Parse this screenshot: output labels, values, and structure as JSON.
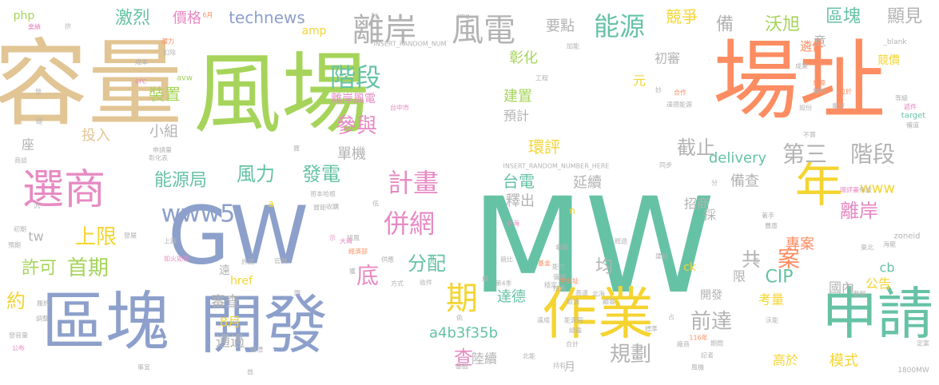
{
  "palette": {
    "tan": "#e2c594",
    "green": "#a6d45a",
    "orange": "#fc8d62",
    "blue": "#8da0cb",
    "teal": "#66c2a5",
    "yellow": "#f5d431",
    "pink": "#e78ac3",
    "gray": "#b3b3b3"
  },
  "words": [
    {
      "text": "容量",
      "color": "tan"
    },
    {
      "text": "風場",
      "color": "green"
    },
    {
      "text": "場址",
      "color": "orange"
    },
    {
      "text": "MW",
      "color": "teal"
    },
    {
      "text": "GW",
      "color": "blue"
    },
    {
      "text": "區塊",
      "color": "blue"
    },
    {
      "text": "開發",
      "color": "blue"
    },
    {
      "text": "作業",
      "color": "yellow"
    },
    {
      "text": "申請",
      "color": "teal"
    },
    {
      "text": "選商",
      "color": "pink"
    },
    {
      "text": "年",
      "color": "yellow"
    },
    {
      "text": "離岸",
      "color": "gray"
    },
    {
      "text": "風電",
      "color": "gray"
    },
    {
      "text": "能源",
      "color": "teal"
    },
    {
      "text": "階段",
      "color": "teal"
    },
    {
      "text": "計畫",
      "color": "pink"
    },
    {
      "text": "第三",
      "color": "gray"
    },
    {
      "text": "階段",
      "color": "gray"
    },
    {
      "text": "併網",
      "color": "pink"
    },
    {
      "text": "www5",
      "color": "blue"
    },
    {
      "text": "風力",
      "color": "teal"
    },
    {
      "text": "發電",
      "color": "teal"
    },
    {
      "text": "上限",
      "color": "yellow"
    },
    {
      "text": "首期",
      "color": "green"
    },
    {
      "text": "分配",
      "color": "teal"
    },
    {
      "text": "期",
      "color": "yellow"
    },
    {
      "text": "查",
      "color": "pink"
    },
    {
      "text": "規劃",
      "color": "gray"
    },
    {
      "text": "前達",
      "color": "gray"
    },
    {
      "text": "參與",
      "color": "pink"
    },
    {
      "text": "激烈",
      "color": "teal"
    },
    {
      "text": "technews",
      "color": "blue"
    },
    {
      "text": "區塊",
      "color": "teal"
    },
    {
      "text": "顯見",
      "color": "gray"
    },
    {
      "text": "沃旭",
      "color": "green"
    },
    {
      "text": "競爭",
      "color": "yellow"
    },
    {
      "text": "備",
      "color": "gray"
    },
    {
      "text": "能源局",
      "color": "teal"
    },
    {
      "text": "截止",
      "color": "gray"
    },
    {
      "text": "離岸",
      "color": "pink"
    },
    {
      "text": "共",
      "color": "gray"
    },
    {
      "text": "案",
      "color": "orange"
    },
    {
      "text": "CIP",
      "color": "teal"
    },
    {
      "text": "底",
      "color": "pink"
    },
    {
      "text": "許可",
      "color": "green"
    },
    {
      "text": "約",
      "color": "yellow"
    },
    {
      "text": "tw",
      "color": "gray"
    },
    {
      "text": "投入",
      "color": "tan"
    },
    {
      "text": "小組",
      "color": "gray"
    },
    {
      "text": "裝置",
      "color": "green"
    },
    {
      "text": "價格",
      "color": "pink"
    },
    {
      "text": "php",
      "color": "green"
    },
    {
      "text": "amp",
      "color": "yellow"
    },
    {
      "text": "要點",
      "color": "gray"
    },
    {
      "text": "彰化",
      "color": "green"
    },
    {
      "text": "初審",
      "color": "gray"
    },
    {
      "text": "建置",
      "color": "green"
    },
    {
      "text": "預計",
      "color": "gray"
    },
    {
      "text": "環評",
      "color": "yellow"
    },
    {
      "text": "delivery",
      "color": "teal"
    },
    {
      "text": "備查",
      "color": "gray"
    },
    {
      "text": "台電",
      "color": "teal"
    },
    {
      "text": "延續",
      "color": "gray"
    },
    {
      "text": "釋出",
      "color": "gray"
    },
    {
      "text": "www",
      "color": "yellow"
    },
    {
      "text": "招商",
      "color": "gray"
    },
    {
      "text": "專案",
      "color": "orange"
    },
    {
      "text": "公告",
      "color": "yellow"
    },
    {
      "text": "國內",
      "color": "gray"
    },
    {
      "text": "考量",
      "color": "yellow"
    },
    {
      "text": "高於",
      "color": "yellow"
    },
    {
      "text": "模式",
      "color": "yellow"
    },
    {
      "text": "均",
      "color": "gray"
    },
    {
      "text": "a4b3f35b",
      "color": "teal"
    },
    {
      "text": "陸續",
      "color": "gray"
    },
    {
      "text": "審查",
      "color": "gray"
    },
    {
      "text": "8月",
      "color": "yellow"
    },
    {
      "text": "通過",
      "color": "gray"
    },
    {
      "text": "href",
      "color": "yellow"
    },
    {
      "text": "遠",
      "color": "gray"
    },
    {
      "text": "cb",
      "color": "teal"
    },
    {
      "text": "ck",
      "color": "yellow"
    },
    {
      "text": "單機",
      "color": "gray"
    },
    {
      "text": "座",
      "color": "gray"
    },
    {
      "text": "元",
      "color": "yellow"
    },
    {
      "text": "達德",
      "color": "teal"
    },
    {
      "text": "月",
      "color": "gray"
    },
    {
      "text": "n",
      "color": "yellow"
    },
    {
      "text": "採",
      "color": "gray"
    },
    {
      "text": "限",
      "color": "gray"
    },
    {
      "text": "開發",
      "color": "gray"
    },
    {
      "text": "意",
      "color": "gray"
    },
    {
      "text": "遴件",
      "color": "orange"
    },
    {
      "text": "競價",
      "color": "yellow"
    },
    {
      "text": "離岸風電",
      "color": "pink"
    },
    {
      "text": "a",
      "color": "yellow"
    },
    {
      "text": "INSERT_RANDOM_NUMBER_HERE",
      "color": "gray"
    },
    {
      "text": "INSERT_RANDOM_NUM",
      "color": "gray"
    },
    {
      "text": "img",
      "color": "gray"
    },
    {
      "text": "_blank",
      "color": "gray"
    },
    {
      "text": "target",
      "color": "teal"
    },
    {
      "text": "avw",
      "color": "green"
    },
    {
      "text": "src",
      "color": "pink"
    },
    {
      "text": "zoneid",
      "color": "gray"
    },
    {
      "text": "1800MW",
      "color": "gray"
    },
    {
      "text": "6月",
      "color": "orange"
    },
    {
      "text": "利",
      "color": "gray"
    },
    {
      "text": "成本",
      "color": "gray"
    },
    {
      "text": "潛力",
      "color": "orange"
    },
    {
      "text": "扣除",
      "color": "gray"
    },
    {
      "text": "業績",
      "color": "pink"
    },
    {
      "text": "拚",
      "color": "gray"
    },
    {
      "text": "發",
      "color": "gray"
    },
    {
      "text": "加能",
      "color": "gray"
    },
    {
      "text": "工程",
      "color": "gray"
    },
    {
      "text": "妙",
      "color": "gray"
    },
    {
      "text": "合作",
      "color": "orange"
    },
    {
      "text": "來源",
      "color": "orange"
    },
    {
      "text": "順利",
      "color": "gray"
    },
    {
      "text": "位於",
      "color": "orange"
    },
    {
      "text": "等級",
      "color": "gray"
    },
    {
      "text": "成果",
      "color": "gray"
    },
    {
      "text": "達德能源",
      "color": "gray"
    },
    {
      "text": "台中市",
      "color": "pink"
    },
    {
      "text": "設份",
      "color": "gray"
    },
    {
      "text": "重境",
      "color": "gray"
    },
    {
      "text": "遞件",
      "color": "pink"
    },
    {
      "text": "備道",
      "color": "gray"
    },
    {
      "text": "不算",
      "color": "gray"
    },
    {
      "text": "同步",
      "color": "gray"
    },
    {
      "text": "分",
      "color": "gray"
    },
    {
      "text": "環評審",
      "color": "pink"
    },
    {
      "text": "佈設",
      "color": "gray"
    },
    {
      "text": "東北",
      "color": "gray"
    },
    {
      "text": "海龍",
      "color": "gray"
    },
    {
      "text": "著手",
      "color": "gray"
    },
    {
      "text": "外海",
      "color": "pink"
    },
    {
      "text": "豐庫",
      "color": "gray"
    },
    {
      "text": "經過",
      "color": "gray"
    },
    {
      "text": "傘取",
      "color": "gray"
    },
    {
      "text": "基金",
      "color": "orange"
    },
    {
      "text": "競比",
      "color": "gray"
    },
    {
      "text": "建設",
      "color": "gray"
    },
    {
      "text": "成",
      "color": "gray"
    },
    {
      "text": "值得",
      "color": "gray"
    },
    {
      "text": "中央址",
      "color": "orange"
    },
    {
      "text": "收件",
      "color": "gray"
    },
    {
      "text": "方式",
      "color": "gray"
    },
    {
      "text": "能力",
      "color": "gray"
    },
    {
      "text": "達成",
      "color": "gray"
    },
    {
      "text": "第4季",
      "color": "gray"
    },
    {
      "text": "供應",
      "color": "gray"
    },
    {
      "text": "經濟部",
      "color": "orange"
    },
    {
      "text": "收購",
      "color": "gray"
    },
    {
      "text": "官網",
      "color": "gray"
    },
    {
      "text": "許諾",
      "color": "gray"
    },
    {
      "text": "如火如荼",
      "color": "pink"
    },
    {
      "text": "上路",
      "color": "gray"
    },
    {
      "text": "發展",
      "color": "gray"
    },
    {
      "text": "預期",
      "color": "gray"
    },
    {
      "text": "初期",
      "color": "gray"
    },
    {
      "text": "獲",
      "color": "gray"
    },
    {
      "text": "示",
      "color": "pink"
    },
    {
      "text": "汎",
      "color": "gray"
    },
    {
      "text": "商談",
      "color": "gray"
    },
    {
      "text": "鏈",
      "color": "gray"
    },
    {
      "text": "申請量",
      "color": "gray"
    },
    {
      "text": "彰化表",
      "color": "gray"
    },
    {
      "text": "寶",
      "color": "gray"
    },
    {
      "text": "寶鉅",
      "color": "gray"
    },
    {
      "text": "哥本哈根",
      "color": "gray"
    },
    {
      "text": "低",
      "color": "gray"
    },
    {
      "text": "旭風",
      "color": "gray"
    },
    {
      "text": "大兩",
      "color": "pink"
    },
    {
      "text": "履約",
      "color": "gray"
    },
    {
      "text": "調整",
      "color": "gray"
    },
    {
      "text": "發容量",
      "color": "gray"
    },
    {
      "text": "公布",
      "color": "pink"
    },
    {
      "text": "基礎",
      "color": "gray"
    },
    {
      "text": "北能",
      "color": "gray"
    },
    {
      "text": "持有",
      "color": "gray"
    },
    {
      "text": "116年",
      "color": "orange"
    },
    {
      "text": "占",
      "color": "gray"
    },
    {
      "text": "沃能",
      "color": "gray"
    },
    {
      "text": "記者",
      "color": "gray"
    },
    {
      "text": "定案",
      "color": "gray"
    },
    {
      "text": "風機",
      "color": "gray"
    },
    {
      "text": "事宜",
      "color": "gray"
    },
    {
      "text": "首",
      "color": "gray"
    },
    {
      "text": "目標",
      "color": "gray"
    },
    {
      "text": "合計",
      "color": "gray"
    },
    {
      "text": "期間",
      "color": "gray"
    },
    {
      "text": "廠商",
      "color": "gray"
    },
    {
      "text": "能源局",
      "color": "gray"
    },
    {
      "text": "北海",
      "color": "gray"
    },
    {
      "text": "顧客",
      "color": "gray"
    },
    {
      "text": "佑",
      "color": "gray"
    },
    {
      "text": "穩定",
      "color": "gray"
    },
    {
      "text": "高速",
      "color": "gray"
    },
    {
      "text": "取消",
      "color": "gray"
    },
    {
      "text": "動輸",
      "color": "gray"
    },
    {
      "text": "直",
      "color": "gray"
    },
    {
      "text": "標準",
      "color": "gray"
    },
    {
      "text": "總達",
      "color": "gray"
    },
    {
      "text": "技術",
      "color": "gray"
    },
    {
      "text": "開",
      "color": "gray"
    }
  ]
}
